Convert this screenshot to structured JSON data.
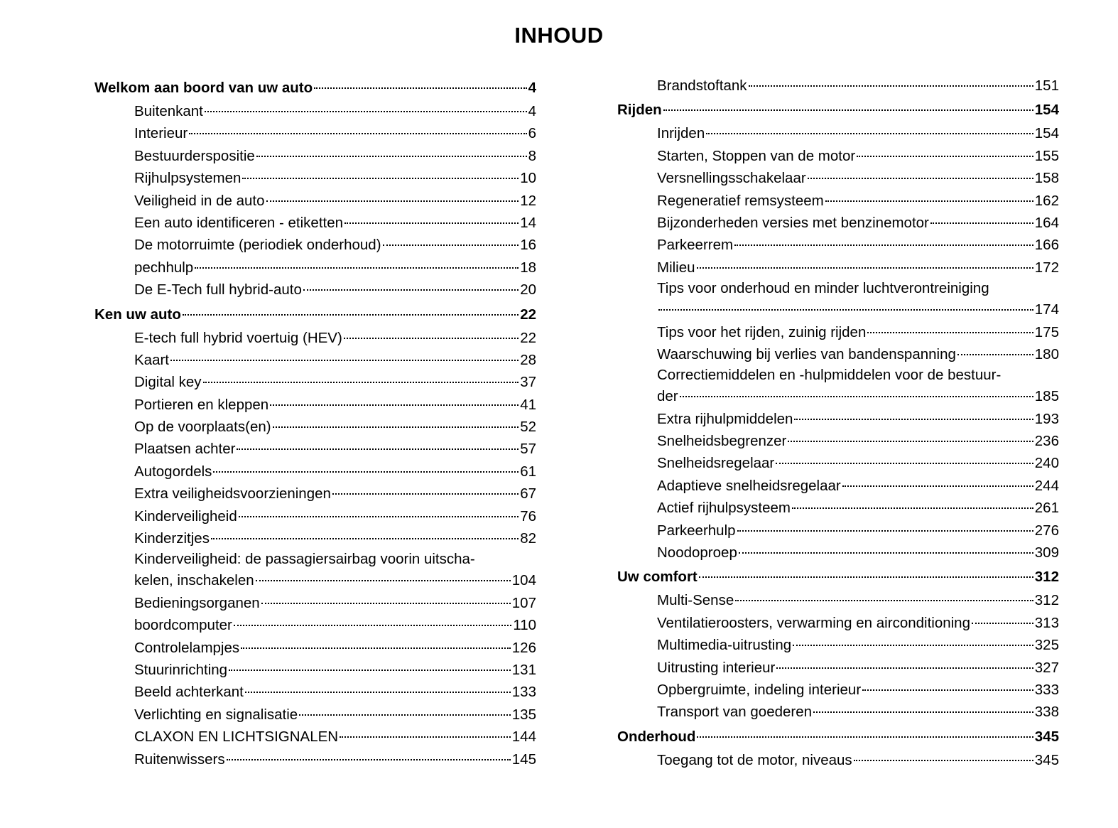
{
  "title": "INHOUD",
  "columns": [
    [
      {
        "type": "section",
        "label": "Welkom aan boord van uw auto",
        "page": "4"
      },
      {
        "type": "item",
        "label": "Buitenkant",
        "page": "4"
      },
      {
        "type": "item",
        "label": "Interieur",
        "page": "6"
      },
      {
        "type": "item",
        "label": "Bestuurderspositie",
        "page": "8"
      },
      {
        "type": "item",
        "label": "Rijhulpsystemen",
        "page": "10"
      },
      {
        "type": "item",
        "label": "Veiligheid in de auto",
        "page": "12"
      },
      {
        "type": "item",
        "label": "Een auto identificeren - etiketten",
        "page": "14"
      },
      {
        "type": "item",
        "label": "De motorruimte (periodiek onderhoud)",
        "page": "16"
      },
      {
        "type": "item",
        "label": "pechhulp",
        "page": "18"
      },
      {
        "type": "item",
        "label": "De E-Tech full hybrid-auto",
        "page": "20"
      },
      {
        "type": "section",
        "label": "Ken uw auto",
        "page": "22"
      },
      {
        "type": "item",
        "label": "E-tech full hybrid voertuig (HEV)",
        "page": "22"
      },
      {
        "type": "item",
        "label": "Kaart",
        "page": "28"
      },
      {
        "type": "item",
        "label": "Digital key",
        "page": "37"
      },
      {
        "type": "item",
        "label": "Portieren en kleppen",
        "page": "41"
      },
      {
        "type": "item",
        "label": "Op de voorplaats(en)",
        "page": "52"
      },
      {
        "type": "item",
        "label": "Plaatsen achter",
        "page": "57"
      },
      {
        "type": "item",
        "label": "Autogordels",
        "page": "61"
      },
      {
        "type": "item",
        "label": "Extra veiligheidsvoorzieningen",
        "page": "67"
      },
      {
        "type": "item",
        "label": "Kinderveiligheid",
        "page": "76"
      },
      {
        "type": "item",
        "label": "Kinderzitjes",
        "page": "82"
      },
      {
        "type": "item",
        "label_line1": "Kinderveiligheid: de passagiersairbag voorin uitscha-",
        "label": "kelen, inschakelen",
        "page": "104"
      },
      {
        "type": "item",
        "label": "Bedieningsorganen",
        "page": "107"
      },
      {
        "type": "item",
        "label": "boordcomputer",
        "page": "110"
      },
      {
        "type": "item",
        "label": "Controlelampjes",
        "page": "126"
      },
      {
        "type": "item",
        "label": "Stuurinrichting",
        "page": "131"
      },
      {
        "type": "item",
        "label": "Beeld achterkant",
        "page": "133"
      },
      {
        "type": "item",
        "label": "Verlichting en signalisatie",
        "page": "135"
      },
      {
        "type": "item",
        "label": "CLAXON EN LICHTSIGNALEN",
        "page": "144"
      },
      {
        "type": "item",
        "label": "Ruitenwissers",
        "page": "145"
      }
    ],
    [
      {
        "type": "item",
        "label": "Brandstoftank",
        "page": "151"
      },
      {
        "type": "section",
        "label": "Rijden",
        "page": "154"
      },
      {
        "type": "item",
        "label": "Inrijden",
        "page": "154"
      },
      {
        "type": "item",
        "label": "Starten, Stoppen van de motor",
        "page": "155"
      },
      {
        "type": "item",
        "label": "Versnellingsschakelaar",
        "page": "158"
      },
      {
        "type": "item",
        "label": "Regeneratief remsysteem",
        "page": "162"
      },
      {
        "type": "item",
        "label": "Bijzonderheden versies met benzinemotor",
        "page": "164"
      },
      {
        "type": "item",
        "label": "Parkeerrem",
        "page": "166"
      },
      {
        "type": "item",
        "label": "Milieu",
        "page": "172"
      },
      {
        "type": "item",
        "label_line1": "Tips voor onderhoud en minder luchtverontreiniging",
        "label": "",
        "page": "174"
      },
      {
        "type": "item",
        "label": "Tips voor het rijden, zuinig rijden",
        "page": "175"
      },
      {
        "type": "item",
        "label": "Waarschuwing bij verlies van bandenspanning",
        "page": "180"
      },
      {
        "type": "item",
        "label_line1": "Correctiemiddelen en -hulpmiddelen voor de bestuur-",
        "label": "der",
        "page": "185"
      },
      {
        "type": "item",
        "label": "Extra rijhulpmiddelen",
        "page": "193"
      },
      {
        "type": "item",
        "label": "Snelheidsbegrenzer",
        "page": "236"
      },
      {
        "type": "item",
        "label": "Snelheidsregelaar",
        "page": "240"
      },
      {
        "type": "item",
        "label": "Adaptieve snelheidsregelaar",
        "page": "244"
      },
      {
        "type": "item",
        "label": "Actief rijhulpsysteem",
        "page": "261"
      },
      {
        "type": "item",
        "label": "Parkeerhulp",
        "page": "276"
      },
      {
        "type": "item",
        "label": "Noodoproep",
        "page": "309"
      },
      {
        "type": "section",
        "label": "Uw comfort",
        "page": "312"
      },
      {
        "type": "item",
        "label": "Multi-Sense",
        "page": "312"
      },
      {
        "type": "item",
        "label": "Ventilatieroosters, verwarming en airconditioning",
        "page": "313"
      },
      {
        "type": "item",
        "label": "Multimedia-uitrusting",
        "page": "325"
      },
      {
        "type": "item",
        "label": "Uitrusting interieur",
        "page": "327"
      },
      {
        "type": "item",
        "label": "Opbergruimte, indeling interieur",
        "page": "333"
      },
      {
        "type": "item",
        "label": "Transport van goederen",
        "page": "338"
      },
      {
        "type": "section",
        "label": "Onderhoud",
        "page": "345"
      },
      {
        "type": "item",
        "label": "Toegang tot de motor, niveaus",
        "page": "345"
      }
    ]
  ]
}
